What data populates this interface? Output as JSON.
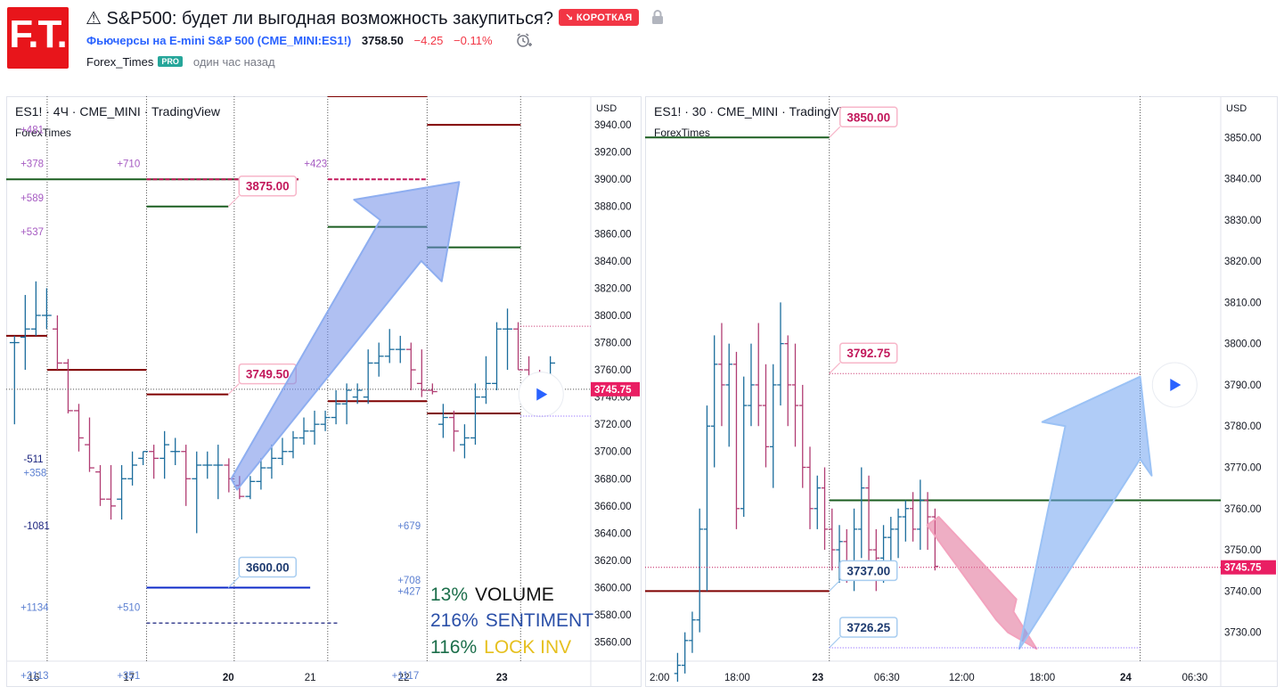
{
  "header": {
    "logo_text": "F.T.",
    "title": "⚠ S&P500: будет ли выгодная возможность закупиться?",
    "badge": "↘ КОРОТКАЯ",
    "symbol_full": "Фьючерсы на E-mini S&P 500 (CME_MINI:ES1!)",
    "price": "3758.50",
    "change": "−4.25",
    "change_pct": "−0.11%",
    "author": "Forex_Times",
    "author_badge": "PRO",
    "time_ago": "один час назад"
  },
  "colors": {
    "green_level": "#1b5e20",
    "red_level": "#7f0000",
    "magenta_level": "#c2185b",
    "blue_level": "#0d2ac9",
    "up_bar": "#1a6c9c",
    "down_bar": "#b13d73",
    "price_tag": "#e91e63",
    "arrow_blue": "#6fa3f0",
    "arrow_pink": "#e98aaa"
  },
  "chart_data": [
    {
      "type": "ohlc",
      "header": "ES1! · 4Ч · CME_MINI · TradingView",
      "watermark": "ForexTimes",
      "currency": "USD",
      "y_ticks": [
        3560,
        3580,
        3600,
        3620,
        3640,
        3660,
        3680,
        3700,
        3720,
        3740,
        3760,
        3780,
        3800,
        3820,
        3840,
        3860,
        3880,
        3900,
        3920,
        3940
      ],
      "ylim": [
        3546,
        3961
      ],
      "x_ticks": [
        "16",
        "17",
        "20",
        "21",
        "22",
        "23"
      ],
      "last_price": "3745.75",
      "callouts": [
        "3875.00",
        "3749.50",
        "3600.00"
      ],
      "side_labels": [
        {
          "text": "+481",
          "color": "#a65bc2"
        },
        {
          "text": "+378",
          "color": "#a65bc2"
        },
        {
          "text": "+589",
          "color": "#a65bc2"
        },
        {
          "text": "+537",
          "color": "#a65bc2"
        },
        {
          "text": "+710",
          "color": "#a65bc2"
        },
        {
          "text": "+423",
          "color": "#a65bc2"
        },
        {
          "text": "-511",
          "color": "#1a237e"
        },
        {
          "text": "+358",
          "color": "#5b7fd1"
        },
        {
          "text": "-1081",
          "color": "#1a237e"
        },
        {
          "text": "+679",
          "color": "#5b7fd1"
        },
        {
          "text": "+708",
          "color": "#5b7fd1"
        },
        {
          "text": "+427",
          "color": "#5b7fd1"
        },
        {
          "text": "+1134",
          "color": "#5b7fd1"
        },
        {
          "text": "+510",
          "color": "#5b7fd1"
        },
        {
          "text": "+2113",
          "color": "#5b7fd1"
        },
        {
          "text": "+351",
          "color": "#5b7fd1"
        },
        {
          "text": "+1117",
          "color": "#5b7fd1"
        }
      ],
      "legend": [
        {
          "pct": "13%",
          "label": "VOLUME",
          "pct_color": "#1b6e4a",
          "label_color": "#111111"
        },
        {
          "pct": "216%",
          "label": "SENTIMENT",
          "pct_color": "#2a4fa8",
          "label_color": "#2a4fa8"
        },
        {
          "pct": "116%",
          "label": "LOCK INV",
          "pct_color": "#1b6e4a",
          "label_color": "#e6c01f"
        }
      ],
      "bars": [
        [
          3780,
          3785,
          3720,
          3780
        ],
        [
          3784,
          3815,
          3760,
          3790
        ],
        [
          3790,
          3825,
          3785,
          3800
        ],
        [
          3800,
          3820,
          3790,
          3800
        ],
        [
          3790,
          3800,
          3760,
          3765
        ],
        [
          3765,
          3768,
          3728,
          3730
        ],
        [
          3730,
          3735,
          3700,
          3710
        ],
        [
          3705,
          3725,
          3685,
          3688
        ],
        [
          3685,
          3690,
          3660,
          3665
        ],
        [
          3665,
          3690,
          3650,
          3660
        ],
        [
          3665,
          3690,
          3650,
          3680
        ],
        [
          3680,
          3700,
          3675,
          3690
        ],
        [
          3695,
          3700,
          3690,
          3700
        ],
        [
          3700,
          3705,
          3680,
          3695
        ],
        [
          3695,
          3715,
          3680,
          3705
        ],
        [
          3700,
          3710,
          3690,
          3700
        ],
        [
          3700,
          3705,
          3660,
          3680
        ],
        [
          3680,
          3700,
          3640,
          3690
        ],
        [
          3690,
          3700,
          3680,
          3690
        ],
        [
          3690,
          3705,
          3665,
          3690
        ],
        [
          3690,
          3695,
          3670,
          3680
        ],
        [
          3675,
          3682,
          3665,
          3667
        ],
        [
          3667,
          3682,
          3665,
          3678
        ],
        [
          3678,
          3695,
          3672,
          3688
        ],
        [
          3688,
          3705,
          3680,
          3695
        ],
        [
          3695,
          3710,
          3690,
          3700
        ],
        [
          3700,
          3715,
          3695,
          3710
        ],
        [
          3710,
          3725,
          3705,
          3715
        ],
        [
          3715,
          3730,
          3705,
          3720
        ],
        [
          3720,
          3730,
          3715,
          3725
        ],
        [
          3725,
          3745,
          3720,
          3735
        ],
        [
          3735,
          3750,
          3720,
          3745
        ],
        [
          3740,
          3750,
          3735,
          3745
        ],
        [
          3740,
          3775,
          3735,
          3765
        ],
        [
          3765,
          3780,
          3755,
          3770
        ],
        [
          3770,
          3790,
          3765,
          3775
        ],
        [
          3775,
          3785,
          3765,
          3775
        ],
        [
          3775,
          3780,
          3745,
          3760
        ],
        [
          3750,
          3775,
          3740,
          3745
        ],
        [
          3745,
          3750,
          3742,
          3744
        ],
        [
          3720,
          3735,
          3710,
          3725
        ],
        [
          3725,
          3730,
          3700,
          3715
        ],
        [
          3705,
          3720,
          3695,
          3710
        ],
        [
          3710,
          3750,
          3705,
          3740
        ],
        [
          3740,
          3770,
          3735,
          3750
        ],
        [
          3750,
          3795,
          3745,
          3790
        ],
        [
          3790,
          3805,
          3760,
          3790
        ],
        [
          3790,
          3795,
          3760,
          3760
        ],
        [
          3760,
          3770,
          3740,
          3755
        ],
        [
          3755,
          3760,
          3740,
          3745
        ],
        [
          3745,
          3770,
          3740,
          3765
        ]
      ],
      "levels": [
        {
          "price": 3900,
          "color": "#1b5e20",
          "x0": 0.0,
          "x1": 0.5
        },
        {
          "price": 3880,
          "color": "#1b5e20",
          "x0": 0.24,
          "x1": 0.38
        },
        {
          "price": 3865,
          "color": "#1b5e20",
          "x0": 0.55,
          "x1": 0.72
        },
        {
          "price": 3850,
          "color": "#1b5e20",
          "x0": 0.72,
          "x1": 0.88
        },
        {
          "price": 3940,
          "color": "#7f0000",
          "x0": 0.72,
          "x1": 0.88
        },
        {
          "price": 3961,
          "color": "#7f0000",
          "x0": 0.55,
          "x1": 0.72
        },
        {
          "price": 3785,
          "color": "#7f0000",
          "x0": 0.0,
          "x1": 0.07
        },
        {
          "price": 3760,
          "color": "#7f0000",
          "x0": 0.07,
          "x1": 0.24
        },
        {
          "price": 3742,
          "color": "#7f0000",
          "x0": 0.24,
          "x1": 0.38
        },
        {
          "price": 3737,
          "color": "#7f0000",
          "x0": 0.55,
          "x1": 0.72
        },
        {
          "price": 3728,
          "color": "#7f0000",
          "x0": 0.72,
          "x1": 0.88
        },
        {
          "price": 3900,
          "color": "#c2185b",
          "x0": 0.24,
          "x1": 0.5
        },
        {
          "price": 3900,
          "color": "#c2185b",
          "x0": 0.55,
          "x1": 0.72
        },
        {
          "price": 3600,
          "color": "#0d2ac9",
          "x0": 0.24,
          "x1": 0.52
        }
      ]
    },
    {
      "type": "ohlc",
      "header": "ES1! · 30 · CME_MINI · TradingView",
      "watermark": "ForexTimes",
      "currency": "USD",
      "y_ticks": [
        3730,
        3740,
        3750,
        3760,
        3770,
        3780,
        3790,
        3800,
        3810,
        3820,
        3830,
        3840,
        3850
      ],
      "ylim": [
        3723,
        3860
      ],
      "x_ticks": [
        "2:00",
        "18:00",
        "23",
        "06:30",
        "12:00",
        "18:00",
        "24",
        "06:30"
      ],
      "last_price": "3745.75",
      "callouts": [
        "3850.00",
        "3792.75",
        "3737.00",
        "3726.25"
      ],
      "bars": [
        [
          3720,
          3725,
          3718,
          3722
        ],
        [
          3722,
          3730,
          3720,
          3728
        ],
        [
          3728,
          3735,
          3725,
          3733
        ],
        [
          3733,
          3760,
          3730,
          3755
        ],
        [
          3755,
          3785,
          3740,
          3780
        ],
        [
          3780,
          3802,
          3770,
          3795
        ],
        [
          3795,
          3805,
          3780,
          3790
        ],
        [
          3790,
          3800,
          3775,
          3795
        ],
        [
          3795,
          3798,
          3755,
          3760
        ],
        [
          3760,
          3792,
          3758,
          3785
        ],
        [
          3785,
          3800,
          3780,
          3790
        ],
        [
          3790,
          3805,
          3780,
          3785
        ],
        [
          3785,
          3795,
          3770,
          3775
        ],
        [
          3775,
          3795,
          3765,
          3790
        ],
        [
          3790,
          3810,
          3785,
          3800
        ],
        [
          3800,
          3802,
          3780,
          3790
        ],
        [
          3790,
          3800,
          3775,
          3785
        ],
        [
          3785,
          3790,
          3765,
          3770
        ],
        [
          3770,
          3775,
          3755,
          3760
        ],
        [
          3760,
          3768,
          3755,
          3765
        ],
        [
          3765,
          3770,
          3750,
          3755
        ],
        [
          3755,
          3760,
          3745,
          3750
        ],
        [
          3750,
          3756,
          3742,
          3752
        ],
        [
          3752,
          3755,
          3742,
          3745
        ],
        [
          3745,
          3760,
          3740,
          3755
        ],
        [
          3755,
          3770,
          3748,
          3765
        ],
        [
          3765,
          3768,
          3745,
          3750
        ],
        [
          3750,
          3755,
          3740,
          3748
        ],
        [
          3748,
          3756,
          3742,
          3753
        ],
        [
          3753,
          3758,
          3745,
          3755
        ],
        [
          3755,
          3760,
          3748,
          3758
        ],
        [
          3758,
          3762,
          3752,
          3760
        ],
        [
          3760,
          3764,
          3752,
          3755
        ],
        [
          3755,
          3767,
          3750,
          3762
        ],
        [
          3762,
          3764,
          3750,
          3758
        ],
        [
          3758,
          3760,
          3745,
          3746
        ]
      ],
      "levels": [
        {
          "price": 3850,
          "color": "#1b5e20",
          "x0": 0.0,
          "x1": 0.32
        },
        {
          "price": 3762,
          "color": "#1b5e20",
          "x0": 0.32,
          "x1": 1.0
        },
        {
          "price": 3740,
          "color": "#7f0000",
          "x0": 0.0,
          "x1": 0.32
        }
      ]
    }
  ]
}
